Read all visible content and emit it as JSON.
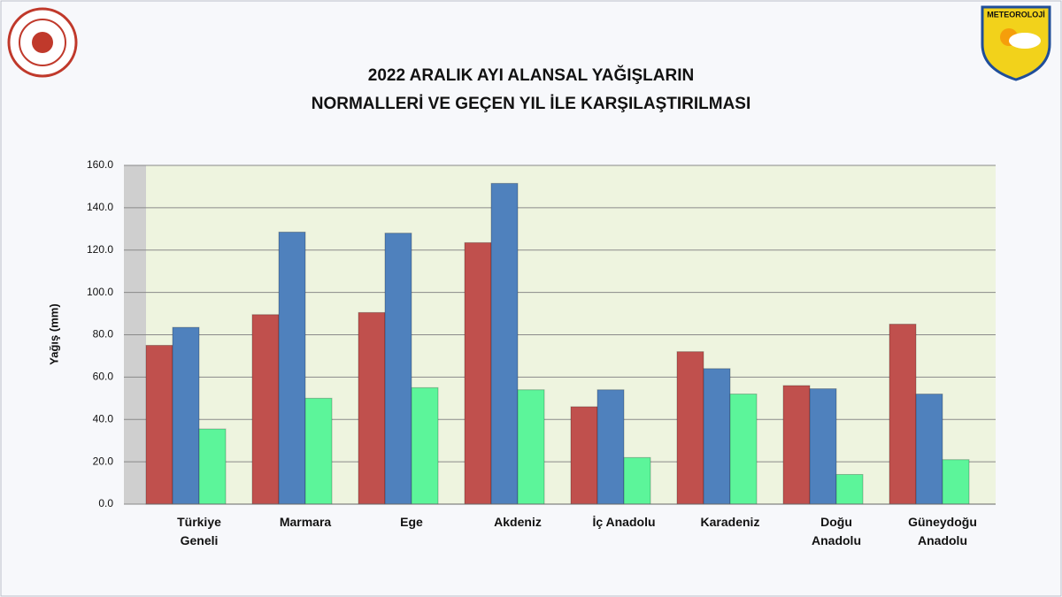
{
  "logo_text": "METEOROLOJİ",
  "chart_data": {
    "type": "bar",
    "title": [
      "2022 ARALIK AYI ALANSAL YAĞIŞLARIN",
      "NORMALLERİ VE GEÇEN YIL İLE KARŞILAŞTIRILMASI"
    ],
    "y_label": "Yağış (mm)",
    "categories": [
      "Türkiye\nGeneli",
      "Marmara",
      "Ege",
      "Akdeniz",
      "İç Anadolu",
      "Karadeniz",
      "Doğu\nAnadolu",
      "Güneydoğu\nAnadolu"
    ],
    "series": [
      {
        "color": "#c0504d",
        "values": [
          75,
          89.5,
          90.5,
          123.5,
          46,
          72,
          56,
          85
        ]
      },
      {
        "color": "#4f81bd",
        "values": [
          83.5,
          128.5,
          128,
          151.5,
          54,
          64,
          54.5,
          52
        ]
      },
      {
        "color": "#5cf59a",
        "values": [
          35.5,
          50,
          55,
          54,
          22,
          52,
          14,
          21
        ]
      }
    ],
    "ylim": [
      0,
      160
    ],
    "yticks": [
      {
        "value": 0,
        "label": "0.0"
      },
      {
        "value": 20,
        "label": "20.0"
      },
      {
        "value": 40,
        "label": "40.0"
      },
      {
        "value": 60,
        "label": "60.0"
      },
      {
        "value": 80,
        "label": "80.0"
      },
      {
        "value": 100,
        "label": "100.0"
      },
      {
        "value": 120,
        "label": "120.0"
      },
      {
        "value": 140,
        "label": "140.0"
      },
      {
        "value": 160,
        "label": "160.0"
      }
    ],
    "grid": true
  }
}
